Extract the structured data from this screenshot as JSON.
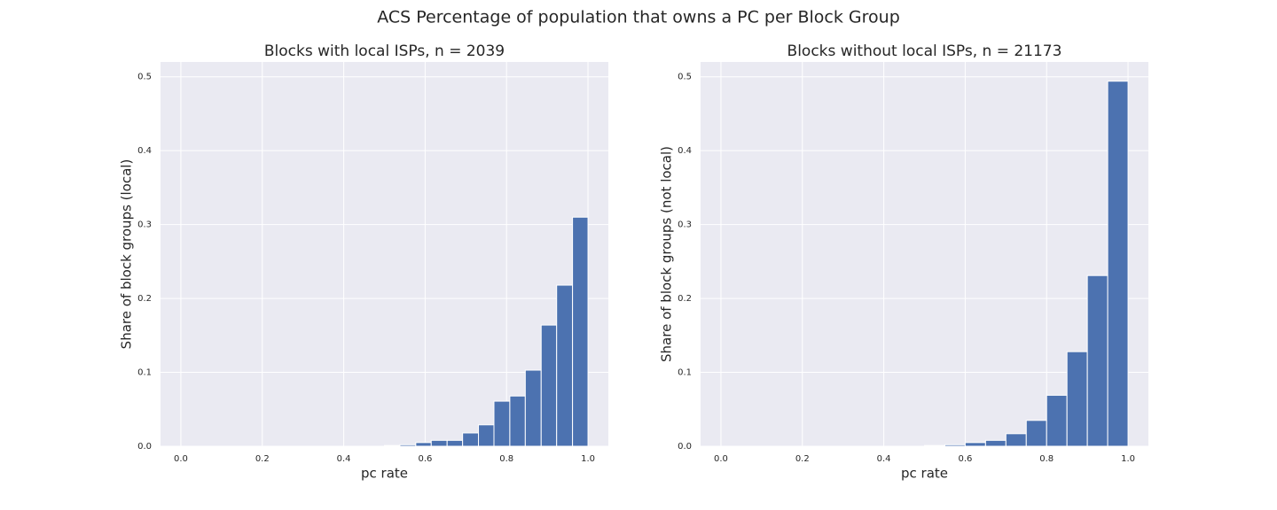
{
  "title": "ACS Percentage of population that owns a PC per Block Group",
  "chart_data": [
    {
      "type": "histogram",
      "title": "Blocks with local ISPs, n = 2039",
      "xlabel": "pc rate",
      "ylabel": "Share of block groups (local)",
      "color": "#4c72b0",
      "grid": true,
      "bins": [
        0,
        0.038,
        0.077,
        0.115,
        0.154,
        0.192,
        0.231,
        0.269,
        0.308,
        0.346,
        0.385,
        0.423,
        0.462,
        0.5,
        0.538,
        0.577,
        0.615,
        0.654,
        0.692,
        0.731,
        0.769,
        0.808,
        0.846,
        0.885,
        0.923,
        0.962,
        1.0
      ],
      "values": [
        0,
        0,
        0,
        0,
        0,
        0,
        0,
        0,
        0,
        0,
        0,
        0,
        0,
        0.001,
        0.002,
        0.005,
        0.008,
        0.008,
        0.018,
        0.029,
        0.061,
        0.068,
        0.103,
        0.164,
        0.218,
        0.31
      ],
      "xlim": [
        -0.05,
        1.05
      ],
      "ylim": [
        0,
        0.52
      ],
      "xticks": [
        {
          "value": 0,
          "label": "0.0"
        },
        0.2,
        0.4,
        0.6,
        0.8,
        {
          "value": 1,
          "label": "1.0"
        }
      ],
      "yticks": [
        {
          "value": 0,
          "label": "0.0"
        },
        0.1,
        0.2,
        0.3,
        0.4,
        0.5
      ]
    },
    {
      "type": "histogram",
      "title": "Blocks without local ISPs, n = 21173",
      "xlabel": "pc rate",
      "ylabel": "Share of block groups (not local)",
      "color": "#4c72b0",
      "grid": true,
      "bins": [
        0,
        0.05,
        0.1,
        0.15,
        0.2,
        0.25,
        0.3,
        0.35,
        0.4,
        0.45,
        0.5,
        0.55,
        0.6,
        0.65,
        0.7,
        0.75,
        0.8,
        0.85,
        0.9,
        0.95,
        1.0
      ],
      "values": [
        0,
        0,
        0,
        0,
        0,
        0,
        0,
        0,
        0,
        0,
        0.001,
        0.002,
        0.005,
        0.008,
        0.017,
        0.035,
        0.069,
        0.128,
        0.231,
        0.494
      ],
      "xlim": [
        -0.05,
        1.05
      ],
      "ylim": [
        0,
        0.52
      ],
      "xticks": [
        {
          "value": 0,
          "label": "0.0"
        },
        0.2,
        0.4,
        0.6,
        0.8,
        {
          "value": 1,
          "label": "1.0"
        }
      ],
      "yticks": [
        {
          "value": 0,
          "label": "0.0"
        },
        0.1,
        0.2,
        0.3,
        0.4,
        0.5
      ]
    }
  ]
}
